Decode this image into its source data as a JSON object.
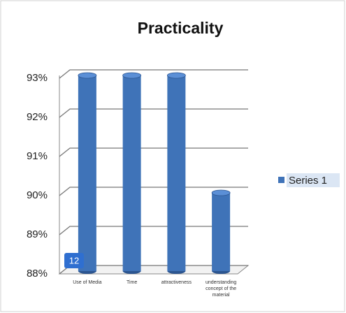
{
  "chart_data": {
    "type": "bar3d",
    "title": "Practicality",
    "categories": [
      "Use of Media",
      "Time",
      "attractiveness",
      "understanding concept of the material"
    ],
    "series": [
      {
        "name": "Series 1",
        "color": "#3f73b8",
        "values": [
          93,
          93,
          93,
          90
        ]
      }
    ],
    "ylim": [
      88,
      93
    ],
    "yticks": [
      {
        "value": 88,
        "label": "88%"
      },
      {
        "value": 89,
        "label": "89%"
      },
      {
        "value": 90,
        "label": "90%"
      },
      {
        "value": 91,
        "label": "91%"
      },
      {
        "value": 92,
        "label": "92%"
      },
      {
        "value": 93,
        "label": "93%"
      }
    ],
    "grid": true,
    "legend": "right",
    "annotation": "12"
  }
}
